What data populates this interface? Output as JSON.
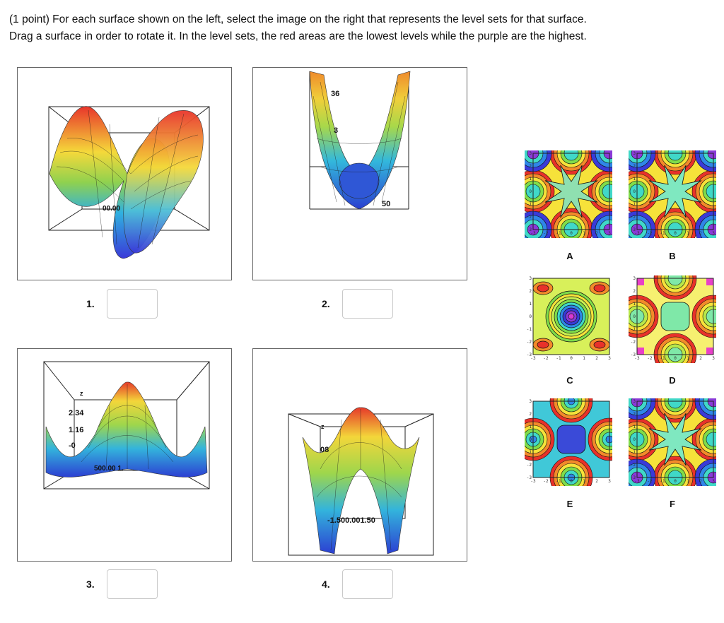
{
  "question": {
    "line1": "(1 point) For each surface shown on the left, select the image on the right that represents the level sets for that surface.",
    "line2": "Drag a surface in order to rotate it. In the level sets, the red areas are the lowest levels while the purple are the highest."
  },
  "surfaces": [
    {
      "number": "1.",
      "axis_text": "00.00",
      "z_ticks": [],
      "value": ""
    },
    {
      "number": "2.",
      "axis_text": "50",
      "z_ticks": [
        "36",
        "3"
      ],
      "value": ""
    },
    {
      "number": "3.",
      "axis_text": "500.00 1.",
      "z_ticks": [
        "z",
        "2.34",
        "1.16",
        "-0"
      ],
      "value": ""
    },
    {
      "number": "4.",
      "axis_text": "-1.500.001.50",
      "z_ticks": [
        "z",
        "08"
      ],
      "value": ""
    }
  ],
  "level_sets": [
    {
      "label": "A"
    },
    {
      "label": "B"
    },
    {
      "label": "C"
    },
    {
      "label": "D"
    },
    {
      "label": "E"
    },
    {
      "label": "F"
    }
  ],
  "contour_axis_ticks": [
    "-3",
    "-2",
    "-1",
    "0",
    "1",
    "2",
    "3"
  ],
  "colors": {
    "panel_border": "#666666",
    "input_border": "#c9c9c9"
  }
}
